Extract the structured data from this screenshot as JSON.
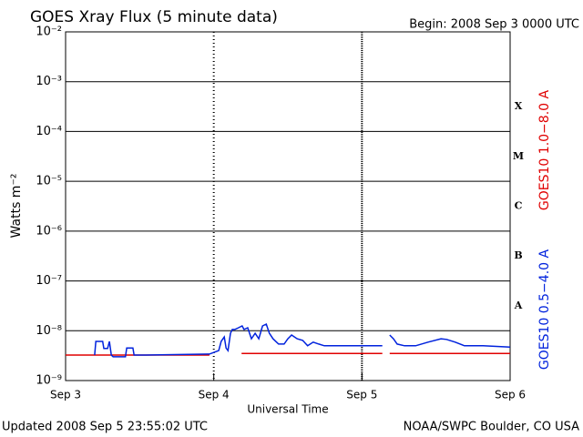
{
  "chart_data": {
    "type": "line",
    "title": "GOES Xray Flux (5 minute data)",
    "subtitle": "Begin:  2008 Sep 3 0000 UTC",
    "x_label": "Universal Time",
    "y_label": "Watts m⁻²",
    "footer_left": "Updated 2008 Sep  5 23:55:02 UTC",
    "footer_right": "NOAA/SWPC Boulder, CO USA",
    "log_y": true,
    "grid": true,
    "xlim": [
      0,
      72
    ],
    "xticks": [
      {
        "value": 0,
        "label": "Sep 3"
      },
      {
        "value": 24,
        "label": "Sep 4"
      },
      {
        "value": 48,
        "label": "Sep 5"
      },
      {
        "value": 72,
        "label": "Sep 6"
      }
    ],
    "ylim": [
      1e-09,
      0.01
    ],
    "yticks": [
      {
        "value": 0.01,
        "label": "10⁻²"
      },
      {
        "value": 0.001,
        "label": "10⁻³"
      },
      {
        "value": 0.0001,
        "label": "10⁻⁴"
      },
      {
        "value": 1e-05,
        "label": "10⁻⁵"
      },
      {
        "value": 1e-06,
        "label": "10⁻⁶"
      },
      {
        "value": 1e-07,
        "label": "10⁻⁷"
      },
      {
        "value": 1e-08,
        "label": "10⁻⁸"
      },
      {
        "value": 1e-09,
        "label": "10⁻⁹"
      }
    ],
    "flare_classes": [
      "A",
      "B",
      "C",
      "M",
      "X"
    ],
    "series": [
      {
        "name": "GOES10 1.0−8.0 A",
        "color": "#e00000",
        "x": [
          0,
          23.3,
          24,
          28.5,
          51.3,
          52,
          52.5,
          72
        ],
        "values": [
          3.25e-09,
          3.25e-09,
          null,
          3.5e-09,
          3.5e-09,
          null,
          3.5e-09,
          3.5e-09
        ]
      },
      {
        "name": "GOES10 0.5−4.0 A",
        "color": "#0022dd",
        "x": [
          4.7,
          4.9,
          6.0,
          6.2,
          6.8,
          7.1,
          7.4,
          7.7,
          9.7,
          9.9,
          10.9,
          11.1,
          13.0,
          23.3,
          24.8,
          25.2,
          25.7,
          26.0,
          26.3,
          26.7,
          27.0,
          27.4,
          28.0,
          28.6,
          28.9,
          29.5,
          30.1,
          30.7,
          31.3,
          31.9,
          32.5,
          33.0,
          33.6,
          34.5,
          35.4,
          36.0,
          36.6,
          37.5,
          38.4,
          39.2,
          40.1,
          41.0,
          41.9,
          43.1,
          44.0,
          51.3,
          52.0,
          52.5,
          53.1,
          53.7,
          54.9,
          56.7,
          58.7,
          60.8,
          61.7,
          63.1,
          64.6,
          67.6,
          72
        ],
        "values": [
          3.25e-09,
          6.1e-09,
          6.1e-09,
          4.4e-09,
          4.4e-09,
          6.1e-09,
          3.25e-09,
          3e-09,
          3e-09,
          4.5e-09,
          4.5e-09,
          3.25e-09,
          3.25e-09,
          3.4e-09,
          4e-09,
          6.1e-09,
          7.5e-09,
          4.5e-09,
          4e-09,
          8.9e-09,
          1.06e-08,
          1.06e-08,
          1.15e-08,
          1.25e-08,
          1.06e-08,
          1.15e-08,
          6.9e-09,
          8.9e-09,
          6.9e-09,
          1.25e-08,
          1.36e-08,
          8.9e-09,
          6.9e-09,
          5.4e-09,
          5.4e-09,
          6.9e-09,
          8.2e-09,
          6.9e-09,
          6.4e-09,
          5e-09,
          5.9e-09,
          5.4e-09,
          5e-09,
          5e-09,
          5e-09,
          5e-09,
          null,
          8.2e-09,
          6.9e-09,
          5.4e-09,
          5e-09,
          5e-09,
          5.9e-09,
          6.9e-09,
          6.7e-09,
          5.9e-09,
          5e-09,
          5e-09,
          4.7e-09
        ]
      }
    ]
  }
}
